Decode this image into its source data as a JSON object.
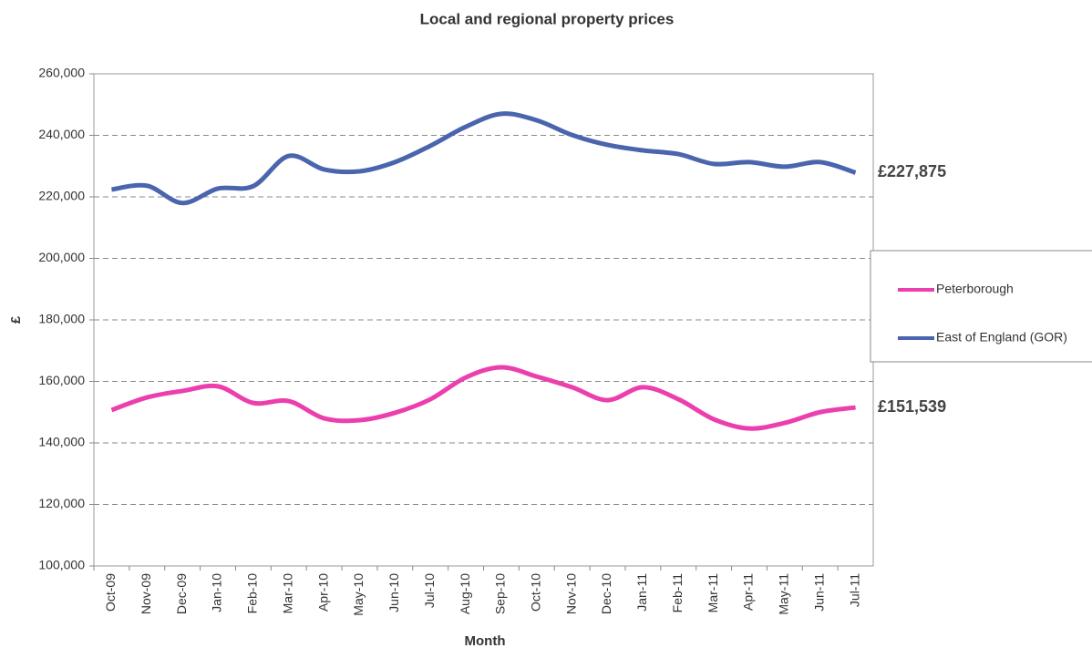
{
  "chart_data": {
    "type": "line",
    "title": "Local and regional property prices",
    "x_label": "Month",
    "y_label": "£",
    "categories": [
      "Oct-09",
      "Nov-09",
      "Dec-09",
      "Jan-10",
      "Feb-10",
      "Mar-10",
      "Apr-10",
      "May-10",
      "Jun-10",
      "Jul-10",
      "Aug-10",
      "Sep-10",
      "Oct-10",
      "Nov-10",
      "Dec-10",
      "Jan-11",
      "Feb-11",
      "Mar-11",
      "Apr-11",
      "May-11",
      "Jun-11",
      "Jul-11"
    ],
    "series": [
      {
        "name": "Peterborough",
        "color": "#ec3fae",
        "values": [
          150700,
          154800,
          156900,
          158400,
          153000,
          153600,
          148000,
          147400,
          149800,
          154200,
          161300,
          164600,
          161600,
          158100,
          153900,
          158100,
          154200,
          147700,
          144700,
          146500,
          150000,
          151539
        ],
        "value_labels": [
          null,
          null,
          null,
          null,
          null,
          null,
          null,
          null,
          null,
          null,
          null,
          null,
          null,
          null,
          null,
          null,
          null,
          null,
          null,
          null,
          null,
          "£151,539"
        ]
      },
      {
        "name": "East of England (GOR)",
        "color": "#4a64ae",
        "values": [
          222400,
          223600,
          218000,
          222700,
          223500,
          233300,
          228900,
          228300,
          231300,
          236600,
          242800,
          247000,
          244900,
          240100,
          236900,
          235100,
          233900,
          230700,
          231300,
          229800,
          231300,
          227875
        ],
        "value_labels": [
          null,
          null,
          null,
          null,
          null,
          null,
          null,
          null,
          null,
          null,
          null,
          null,
          null,
          null,
          null,
          null,
          null,
          null,
          null,
          null,
          null,
          "£227,875"
        ]
      }
    ],
    "ylim": [
      100000,
      260000
    ],
    "yticks": [
      {
        "value": 100000,
        "label": "100,000"
      },
      {
        "value": 120000,
        "label": "120,000"
      },
      {
        "value": 140000,
        "label": "140,000"
      },
      {
        "value": 160000,
        "label": "160,000"
      },
      {
        "value": 180000,
        "label": "180,000"
      },
      {
        "value": 200000,
        "label": "200,000"
      },
      {
        "value": 220000,
        "label": "220,000"
      },
      {
        "value": 240000,
        "label": "240,000"
      },
      {
        "value": 260000,
        "label": "260,000"
      }
    ],
    "grid": true,
    "legend": "right"
  }
}
